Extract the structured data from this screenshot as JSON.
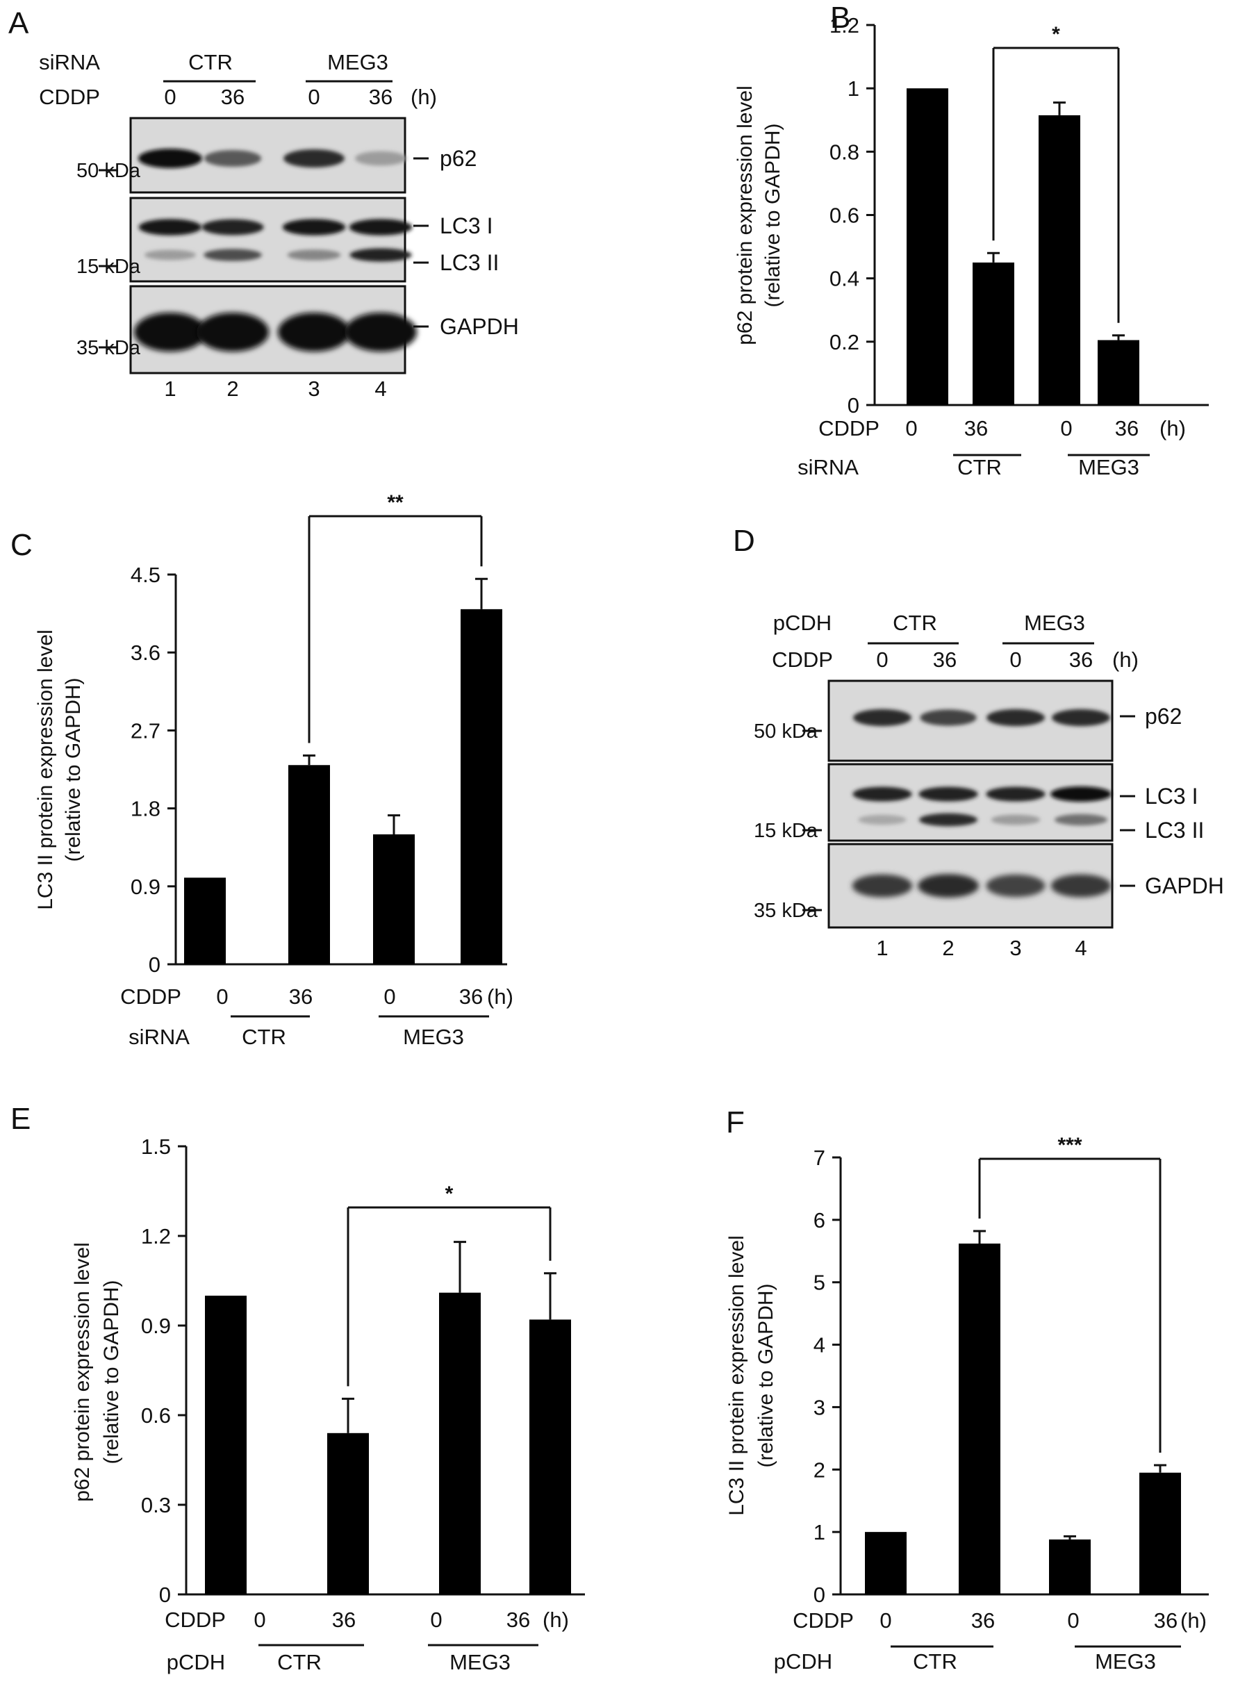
{
  "panels": [
    {
      "id": "A",
      "kind": "blot",
      "label": "A",
      "treat_label": "siRNA",
      "time_label": "CDDP",
      "groups": [
        "CTR",
        "MEG3"
      ],
      "times": [
        "0",
        "36",
        "0",
        "36"
      ],
      "unit": "(h)",
      "markers": [
        "50 kDa",
        "15 kDa",
        "35 kDa"
      ],
      "bands": [
        "p62",
        "LC3 I",
        "LC3 II",
        "GAPDH"
      ],
      "lanes": [
        "1",
        "2",
        "3",
        "4"
      ]
    },
    {
      "id": "D",
      "kind": "blot",
      "label": "D",
      "treat_label": "pCDH",
      "time_label": "CDDP",
      "groups": [
        "CTR",
        "MEG3"
      ],
      "times": [
        "0",
        "36",
        "0",
        "36"
      ],
      "unit": "(h)",
      "markers": [
        "50 kDa",
        "15 kDa",
        "35 kDa"
      ],
      "bands": [
        "p62",
        "LC3 I",
        "LC3 II",
        "GAPDH"
      ],
      "lanes": [
        "1",
        "2",
        "3",
        "4"
      ]
    }
  ],
  "chart_data": [
    {
      "id": "B",
      "label": "B",
      "type": "bar",
      "ylabel_line1": "p62 protein expression level",
      "ylabel_line2": "(relative to GAPDH)",
      "ylim": [
        0,
        1.2
      ],
      "yticks": [
        "0",
        "0.2",
        "0.4",
        "0.6",
        "0.8",
        "1",
        "1.2"
      ],
      "categories": [
        "0",
        "36",
        "0",
        "36"
      ],
      "values": [
        1.0,
        0.45,
        0.915,
        0.205
      ],
      "errors": [
        0,
        0.03,
        0.04,
        0.015
      ],
      "time_label": "CDDP",
      "treat_label": "siRNA",
      "unit": "(h)",
      "groups": [
        "CTR",
        "MEG3"
      ],
      "significance": {
        "from": 1,
        "to": 3,
        "label": "*"
      }
    },
    {
      "id": "C",
      "label": "C",
      "type": "bar",
      "ylabel_line1": "LC3 II protein expression level",
      "ylabel_line2": "(relative to GAPDH)",
      "ylim": [
        0,
        4.5
      ],
      "yticks": [
        "0",
        "0.9",
        "1.8",
        "2.7",
        "3.6",
        "4.5"
      ],
      "categories": [
        "0",
        "36",
        "0",
        "36"
      ],
      "values": [
        1.0,
        2.3,
        1.5,
        4.1
      ],
      "errors": [
        0,
        0.11,
        0.22,
        0.35
      ],
      "time_label": "CDDP",
      "treat_label": "siRNA",
      "unit": "(h)",
      "groups": [
        "CTR",
        "MEG3"
      ],
      "significance": {
        "from": 1,
        "to": 3,
        "label": "**"
      }
    },
    {
      "id": "E",
      "label": "E",
      "type": "bar",
      "ylabel_line1": "p62 protein expression level",
      "ylabel_line2": "(relative to GAPDH)",
      "ylim": [
        0,
        1.5
      ],
      "yticks": [
        "0",
        "0.3",
        "0.6",
        "0.9",
        "1.2",
        "1.5"
      ],
      "categories": [
        "0",
        "36",
        "0",
        "36"
      ],
      "values": [
        1.0,
        0.54,
        1.01,
        0.92
      ],
      "errors": [
        0,
        0.115,
        0.17,
        0.155
      ],
      "time_label": "CDDP",
      "treat_label": "pCDH",
      "unit": "(h)",
      "groups": [
        "CTR",
        "MEG3"
      ],
      "significance": {
        "from": 1,
        "to": 3,
        "label": "*"
      }
    },
    {
      "id": "F",
      "label": "F",
      "type": "bar",
      "ylabel_line1": "LC3 II protein expression level",
      "ylabel_line2": "(relative to GAPDH)",
      "ylim": [
        0,
        7
      ],
      "yticks": [
        "0",
        "1",
        "2",
        "3",
        "4",
        "5",
        "6",
        "7"
      ],
      "categories": [
        "0",
        "36",
        "0",
        "36"
      ],
      "values": [
        1.0,
        5.62,
        0.88,
        1.95
      ],
      "errors": [
        0,
        0.2,
        0.05,
        0.12
      ],
      "time_label": "CDDP",
      "treat_label": "pCDH",
      "unit": "(h)",
      "groups": [
        "CTR",
        "MEG3"
      ],
      "significance": {
        "from": 1,
        "to": 3,
        "label": "***"
      }
    }
  ]
}
